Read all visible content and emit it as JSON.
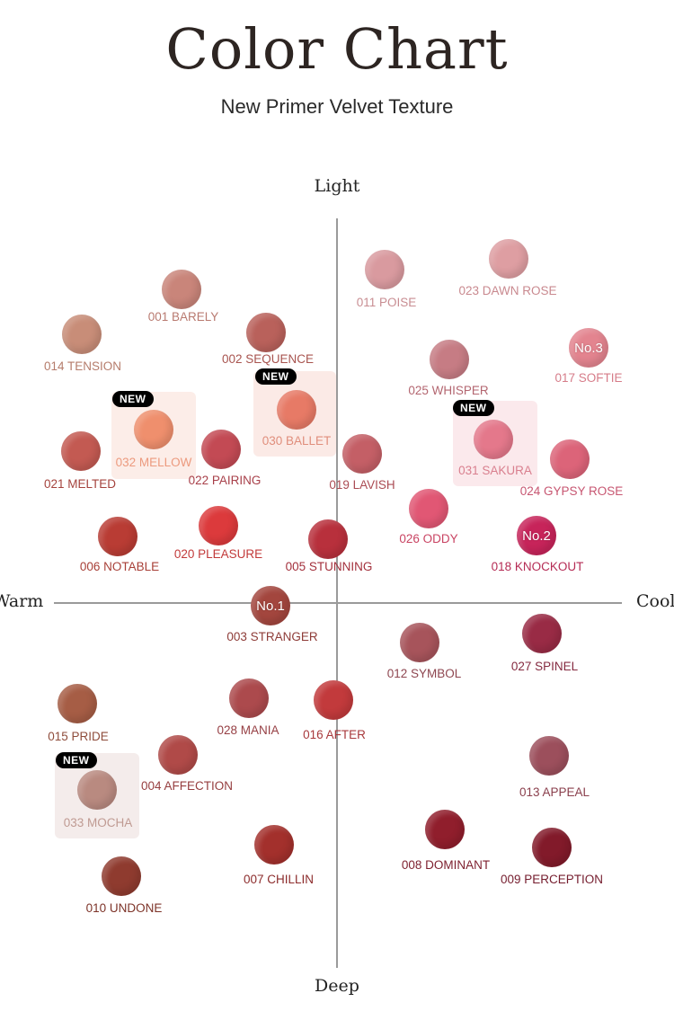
{
  "header": {
    "title": "Color Chart",
    "subtitle": "New Primer Velvet Texture"
  },
  "axes": {
    "top": "Light",
    "bottom": "Deep",
    "left": "Warm",
    "right": "Cool"
  },
  "badge_text": "NEW",
  "shades": [
    {
      "id": "001",
      "label": "001 BARELY",
      "color": "#c9857a",
      "label_color": "#b97a70",
      "is_new": false
    },
    {
      "id": "002",
      "label": "002 SEQUENCE",
      "color": "#b9615b",
      "label_color": "#a8544f",
      "is_new": false
    },
    {
      "id": "014",
      "label": "014 TENSION",
      "color": "#c88d78",
      "label_color": "#b57c6b",
      "is_new": false
    },
    {
      "id": "030",
      "label": "030  BALLET",
      "color": "#e77a66",
      "label_color": "#e08e7c",
      "is_new": true
    },
    {
      "id": "032",
      "label": "032 MELLOW",
      "color": "#ef8f6d",
      "label_color": "#ec9a7e",
      "is_new": true
    },
    {
      "id": "021",
      "label": "021 MELTED",
      "color": "#c35a52",
      "label_color": "#a5433d",
      "is_new": false
    },
    {
      "id": "022",
      "label": "022 PAIRING",
      "color": "#c34a54",
      "label_color": "#a8404a",
      "is_new": false
    },
    {
      "id": "019",
      "label": "019 LAVISH",
      "color": "#c45f66",
      "label_color": "#ab4c54",
      "is_new": false
    },
    {
      "id": "011",
      "label": "011 POISE",
      "color": "#d99a9f",
      "label_color": "#c88d92",
      "is_new": false
    },
    {
      "id": "023",
      "label": "023 DAWN ROSE",
      "color": "#de9ea2",
      "label_color": "#c9898f",
      "is_new": false
    },
    {
      "id": "025",
      "label": "025 WHISPER",
      "color": "#c67c84",
      "label_color": "#b36670",
      "is_new": false
    },
    {
      "id": "017",
      "label": "017 SOFTIE",
      "color": "#e3848f",
      "label_color": "#d67c89",
      "number": "No.3",
      "is_new": false
    },
    {
      "id": "031",
      "label": "031 SAKURA",
      "color": "#e4788b",
      "label_color": "#d97f8e",
      "is_new": true
    },
    {
      "id": "024",
      "label": "024 GYPSY ROSE",
      "color": "#dc6479",
      "label_color": "#c75671",
      "is_new": false
    },
    {
      "id": "026",
      "label": "026 ODDY",
      "color": "#e15774",
      "label_color": "#c94463",
      "is_new": false
    },
    {
      "id": "018",
      "label": "018 KNOCKOUT",
      "color": "#c7245a",
      "label_color": "#b52c55",
      "number": "No.2",
      "is_new": false
    },
    {
      "id": "006",
      "label": "006 NOTABLE",
      "color": "#b93c34",
      "label_color": "#a84038",
      "is_new": false
    },
    {
      "id": "020",
      "label": "020 PLEASURE",
      "color": "#dc3a3c",
      "label_color": "#c23a3a",
      "is_new": false
    },
    {
      "id": "005",
      "label": "005 STUNNING",
      "color": "#b8303c",
      "label_color": "#a3303c",
      "is_new": false
    },
    {
      "id": "003",
      "label": "003 STRANGER",
      "color": "#a3463e",
      "label_color": "#8e3c38",
      "number": "No.1",
      "is_new": false
    },
    {
      "id": "012",
      "label": "012 SYMBOL",
      "color": "#a7545b",
      "label_color": "#8e4650",
      "is_new": false
    },
    {
      "id": "027",
      "label": "027 SPINEL",
      "color": "#992b45",
      "label_color": "#852a40",
      "is_new": false
    },
    {
      "id": "015",
      "label": "015 PRIDE",
      "color": "#a65d45",
      "label_color": "#8f4d3c",
      "is_new": false
    },
    {
      "id": "028",
      "label": "028 MANIA",
      "color": "#ac4a4d",
      "label_color": "#963f44",
      "is_new": false
    },
    {
      "id": "016",
      "label": "016 AFTER",
      "color": "#c23a3c",
      "label_color": "#a8393c",
      "is_new": false
    },
    {
      "id": "004",
      "label": "004 AFFECTION",
      "color": "#b04a48",
      "label_color": "#963e3f",
      "is_new": false
    },
    {
      "id": "033",
      "label": "033 MOCHA",
      "color": "#b98a80",
      "label_color": "#bf9a92",
      "is_new": true
    },
    {
      "id": "013",
      "label": "013 APPEAL",
      "color": "#9c4f5c",
      "label_color": "#8a3f4c",
      "is_new": false
    },
    {
      "id": "010",
      "label": "010 UNDONE",
      "color": "#8f3b2f",
      "label_color": "#7d3328",
      "is_new": false
    },
    {
      "id": "007",
      "label": "007 CHILLIN",
      "color": "#a3302c",
      "label_color": "#8c2c2c",
      "is_new": false
    },
    {
      "id": "008",
      "label": "008 DOMINANT",
      "color": "#901e2c",
      "label_color": "#7d1f2e",
      "is_new": false
    },
    {
      "id": "009",
      "label": "009 PERCEPTION",
      "color": "#821a2a",
      "label_color": "#751d2e",
      "is_new": false
    }
  ]
}
